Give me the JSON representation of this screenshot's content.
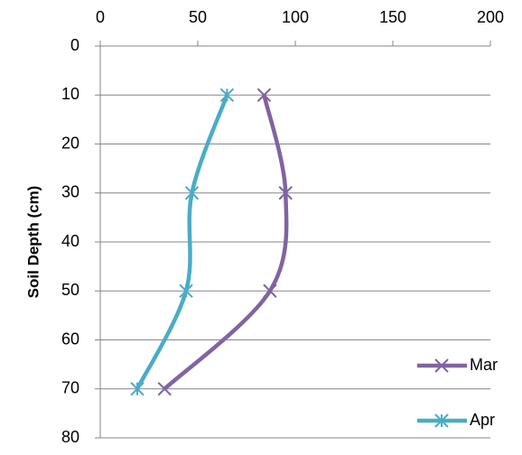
{
  "chart_data": {
    "type": "line",
    "y_label": "Soil Depth (cm)",
    "y": [
      10,
      30,
      50,
      70
    ],
    "series": [
      {
        "name": "Mar",
        "color": "#8064a2",
        "marker": "x",
        "values": [
          84,
          95,
          87,
          33
        ]
      },
      {
        "name": "Apr",
        "color": "#4bacc6",
        "marker": "star",
        "values": [
          65,
          47,
          44,
          19
        ]
      }
    ],
    "xlim": [
      0,
      200
    ],
    "xticks": [
      0,
      50,
      100,
      150,
      200
    ],
    "ylim": [
      0,
      80
    ],
    "yticks": [
      0,
      10,
      20,
      30,
      40,
      50,
      60,
      70,
      80
    ],
    "y_inverted": true,
    "x_axis_position": "top",
    "smooth": true,
    "grid": true,
    "legend": "bottom-right"
  }
}
